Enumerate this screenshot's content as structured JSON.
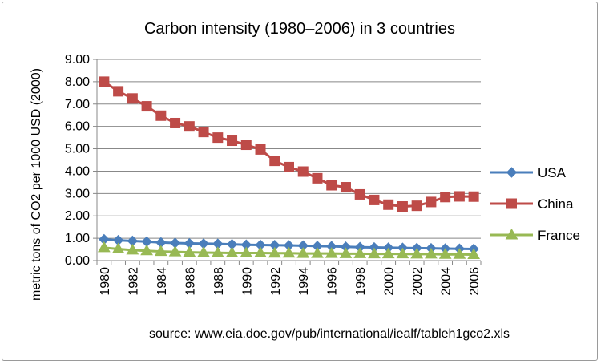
{
  "chart_data": {
    "type": "line",
    "title": "Carbon intensity (1980–2006) in 3 countries",
    "ylabel": "metric tons of CO2 per 1000 USD (2000)",
    "xlabel": "",
    "source": "source: www.eia.doe.gov/pub/international/iealf/tableh1gco2.xls",
    "ylim": [
      0,
      9
    ],
    "y_ticks": [
      "0.00",
      "1.00",
      "2.00",
      "3.00",
      "4.00",
      "5.00",
      "6.00",
      "7.00",
      "8.00",
      "9.00"
    ],
    "x": [
      1980,
      1981,
      1982,
      1983,
      1984,
      1985,
      1986,
      1987,
      1988,
      1989,
      1990,
      1991,
      1992,
      1993,
      1994,
      1995,
      1996,
      1997,
      1998,
      1999,
      2000,
      2001,
      2002,
      2003,
      2004,
      2005,
      2006
    ],
    "x_tick_labels": [
      "1980",
      "1982",
      "1984",
      "1986",
      "1988",
      "1990",
      "1992",
      "1994",
      "1996",
      "1998",
      "2000",
      "2002",
      "2004",
      "2006"
    ],
    "grid": "horizontal",
    "legend_position": "right",
    "series": [
      {
        "name": "USA",
        "color": "#4a7ebb",
        "marker": "diamond",
        "values": [
          0.95,
          0.91,
          0.88,
          0.85,
          0.81,
          0.79,
          0.77,
          0.76,
          0.75,
          0.73,
          0.71,
          0.7,
          0.69,
          0.68,
          0.67,
          0.65,
          0.64,
          0.62,
          0.6,
          0.59,
          0.58,
          0.57,
          0.56,
          0.55,
          0.54,
          0.53,
          0.52
        ]
      },
      {
        "name": "China",
        "color": "#be4b48",
        "marker": "square",
        "values": [
          8.0,
          7.57,
          7.25,
          6.9,
          6.48,
          6.15,
          6.0,
          5.75,
          5.5,
          5.36,
          5.18,
          4.97,
          4.46,
          4.18,
          3.98,
          3.68,
          3.37,
          3.28,
          2.96,
          2.71,
          2.5,
          2.42,
          2.45,
          2.62,
          2.84,
          2.87,
          2.86
        ]
      },
      {
        "name": "France",
        "color": "#98b954",
        "marker": "triangle",
        "values": [
          0.58,
          0.52,
          0.47,
          0.44,
          0.41,
          0.39,
          0.37,
          0.36,
          0.35,
          0.34,
          0.34,
          0.34,
          0.33,
          0.33,
          0.32,
          0.32,
          0.32,
          0.31,
          0.31,
          0.3,
          0.3,
          0.3,
          0.29,
          0.29,
          0.28,
          0.28,
          0.27
        ]
      }
    ]
  }
}
